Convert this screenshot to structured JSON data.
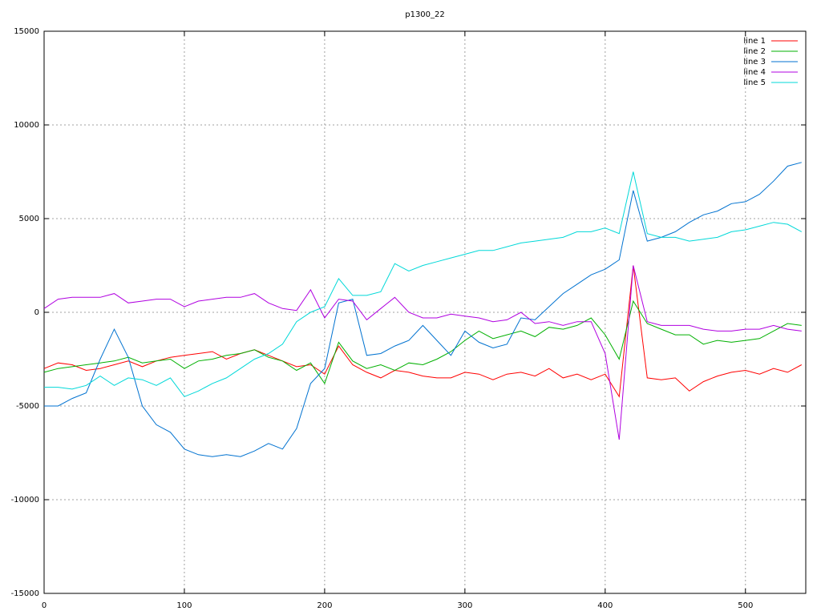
{
  "chart_data": {
    "type": "line",
    "title": "p1300_22",
    "x": [
      0,
      10,
      20,
      30,
      40,
      50,
      60,
      70,
      80,
      90,
      100,
      110,
      120,
      130,
      140,
      150,
      160,
      170,
      180,
      190,
      200,
      210,
      220,
      230,
      240,
      250,
      260,
      270,
      280,
      290,
      300,
      310,
      320,
      330,
      340,
      350,
      360,
      370,
      380,
      390,
      400,
      410,
      420,
      430,
      440,
      450,
      460,
      470,
      480,
      490,
      500,
      510,
      520,
      530,
      540
    ],
    "series": [
      {
        "name": "line 1",
        "color": "#ff0000",
        "values": [
          -3000,
          -2700,
          -2800,
          -3100,
          -3000,
          -2800,
          -2600,
          -2900,
          -2600,
          -2400,
          -2300,
          -2200,
          -2100,
          -2500,
          -2200,
          -2000,
          -2300,
          -2600,
          -2900,
          -2800,
          -3300,
          -1800,
          -2800,
          -3200,
          -3500,
          -3100,
          -3200,
          -3400,
          -3500,
          -3500,
          -3200,
          -3300,
          -3600,
          -3300,
          -3200,
          -3400,
          -3000,
          -3500,
          -3300,
          -3600,
          -3300,
          -4500,
          2500,
          -3500,
          -3600,
          -3500,
          -4200,
          -3700,
          -3400,
          -3200,
          -3100,
          -3300,
          -3000,
          -3200,
          -2800
        ]
      },
      {
        "name": "line 2",
        "color": "#00b000",
        "values": [
          -3200,
          -3000,
          -2900,
          -2800,
          -2700,
          -2600,
          -2400,
          -2700,
          -2600,
          -2500,
          -3000,
          -2600,
          -2500,
          -2300,
          -2200,
          -2000,
          -2400,
          -2600,
          -3100,
          -2700,
          -3800,
          -1600,
          -2600,
          -3000,
          -2800,
          -3100,
          -2700,
          -2800,
          -2500,
          -2100,
          -1500,
          -1000,
          -1400,
          -1200,
          -1000,
          -1300,
          -800,
          -900,
          -700,
          -300,
          -1200,
          -2500,
          600,
          -600,
          -900,
          -1200,
          -1200,
          -1700,
          -1500,
          -1600,
          -1500,
          -1400,
          -1000,
          -600,
          -700
        ]
      },
      {
        "name": "line 3",
        "color": "#0072d0",
        "values": [
          -5000,
          -5000,
          -4600,
          -4300,
          -2500,
          -900,
          -2400,
          -5000,
          -6000,
          -6400,
          -7300,
          -7600,
          -7700,
          -7600,
          -7700,
          -7400,
          -7000,
          -7300,
          -6200,
          -3800,
          -3000,
          500,
          700,
          -2300,
          -2200,
          -1800,
          -1500,
          -700,
          -1500,
          -2300,
          -1000,
          -1600,
          -1900,
          -1700,
          -300,
          -400,
          300,
          1000,
          1500,
          2000,
          2300,
          2800,
          6500,
          3800,
          4000,
          4300,
          4800,
          5200,
          5400,
          5800,
          5900,
          6300,
          7000,
          7800,
          8000
        ]
      },
      {
        "name": "line 4",
        "color": "#b000e0",
        "values": [
          200,
          700,
          800,
          800,
          800,
          1000,
          500,
          600,
          700,
          700,
          300,
          600,
          700,
          800,
          800,
          1000,
          500,
          200,
          100,
          1200,
          -300,
          700,
          600,
          -400,
          200,
          800,
          0,
          -300,
          -300,
          -100,
          -200,
          -300,
          -500,
          -400,
          0,
          -600,
          -500,
          -700,
          -500,
          -500,
          -2200,
          -6800,
          2500,
          -500,
          -700,
          -700,
          -700,
          -900,
          -1000,
          -1000,
          -900,
          -900,
          -700,
          -900,
          -1000
        ]
      },
      {
        "name": "line 5",
        "color": "#00d8d8",
        "values": [
          -4000,
          -4000,
          -4100,
          -3900,
          -3400,
          -3900,
          -3500,
          -3600,
          -3900,
          -3500,
          -4500,
          -4200,
          -3800,
          -3500,
          -3000,
          -2500,
          -2200,
          -1700,
          -500,
          0,
          300,
          1800,
          900,
          900,
          1100,
          2600,
          2200,
          2500,
          2700,
          2900,
          3100,
          3300,
          3300,
          3500,
          3700,
          3800,
          3900,
          4000,
          4300,
          4300,
          4500,
          4200,
          7500,
          4200,
          4000,
          4000,
          3800,
          3900,
          4000,
          4300,
          4400,
          4600,
          4800,
          4700,
          4300
        ]
      }
    ],
    "xlim": [
      0,
      543
    ],
    "xticks": [
      0,
      100,
      200,
      300,
      400,
      500
    ],
    "ylim": [
      -15000,
      15000
    ],
    "yticks": [
      -15000,
      -10000,
      -5000,
      0,
      5000,
      10000,
      15000
    ],
    "grid": true,
    "legend": "top-right"
  }
}
